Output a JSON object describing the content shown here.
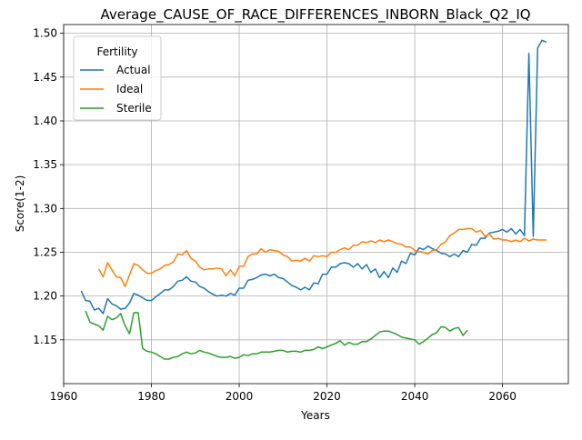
{
  "chart_data": {
    "type": "line",
    "title": "Average_CAUSE_OF_RACE_DIFFERENCES_INBORN_Black_Q2_IQ",
    "xlabel": "Years",
    "ylabel": "Score(1-2)",
    "xlim": [
      1960,
      2075
    ],
    "ylim": [
      1.1,
      1.51
    ],
    "x_ticks": [
      1960,
      1980,
      2000,
      2020,
      2040,
      2060
    ],
    "y_ticks": [
      1.15,
      1.2,
      1.25,
      1.3,
      1.35,
      1.4,
      1.45,
      1.5
    ],
    "grid": true,
    "legend": {
      "title": "Fertility",
      "position": "upper-left"
    },
    "series": [
      {
        "name": "Actual",
        "color": "#1f77b4",
        "points": [
          [
            1964,
            1.206
          ],
          [
            1965,
            1.195
          ],
          [
            1966,
            1.194
          ],
          [
            1967,
            1.184
          ],
          [
            1968,
            1.186
          ],
          [
            1969,
            1.18
          ],
          [
            1970,
            1.197
          ],
          [
            1971,
            1.191
          ],
          [
            1972,
            1.189
          ],
          [
            1973,
            1.185
          ],
          [
            1974,
            1.186
          ],
          [
            1975,
            1.192
          ],
          [
            1976,
            1.203
          ],
          [
            1977,
            1.201
          ],
          [
            1978,
            1.198
          ],
          [
            1979,
            1.195
          ],
          [
            1980,
            1.195
          ],
          [
            1981,
            1.199
          ],
          [
            1982,
            1.203
          ],
          [
            1983,
            1.207
          ],
          [
            1984,
            1.207
          ],
          [
            1985,
            1.211
          ],
          [
            1986,
            1.217
          ],
          [
            1987,
            1.218
          ],
          [
            1988,
            1.222
          ],
          [
            1989,
            1.217
          ],
          [
            1990,
            1.216
          ],
          [
            1991,
            1.211
          ],
          [
            1992,
            1.209
          ],
          [
            1993,
            1.205
          ],
          [
            1994,
            1.202
          ],
          [
            1995,
            1.2
          ],
          [
            1996,
            1.201
          ],
          [
            1997,
            1.2
          ],
          [
            1998,
            1.203
          ],
          [
            1999,
            1.201
          ],
          [
            2000,
            1.209
          ],
          [
            2001,
            1.209
          ],
          [
            2002,
            1.218
          ],
          [
            2003,
            1.219
          ],
          [
            2004,
            1.221
          ],
          [
            2005,
            1.224
          ],
          [
            2006,
            1.225
          ],
          [
            2007,
            1.223
          ],
          [
            2008,
            1.225
          ],
          [
            2009,
            1.221
          ],
          [
            2010,
            1.22
          ],
          [
            2011,
            1.216
          ],
          [
            2012,
            1.212
          ],
          [
            2013,
            1.21
          ],
          [
            2014,
            1.207
          ],
          [
            2015,
            1.21
          ],
          [
            2016,
            1.207
          ],
          [
            2017,
            1.215
          ],
          [
            2018,
            1.214
          ],
          [
            2019,
            1.225
          ],
          [
            2020,
            1.225
          ],
          [
            2021,
            1.233
          ],
          [
            2022,
            1.233
          ],
          [
            2023,
            1.237
          ],
          [
            2024,
            1.238
          ],
          [
            2025,
            1.237
          ],
          [
            2026,
            1.233
          ],
          [
            2027,
            1.237
          ],
          [
            2028,
            1.231
          ],
          [
            2029,
            1.236
          ],
          [
            2030,
            1.227
          ],
          [
            2031,
            1.231
          ],
          [
            2032,
            1.221
          ],
          [
            2033,
            1.228
          ],
          [
            2034,
            1.221
          ],
          [
            2035,
            1.232
          ],
          [
            2036,
            1.227
          ],
          [
            2037,
            1.24
          ],
          [
            2038,
            1.237
          ],
          [
            2039,
            1.249
          ],
          [
            2040,
            1.247
          ],
          [
            2041,
            1.255
          ],
          [
            2042,
            1.253
          ],
          [
            2043,
            1.257
          ],
          [
            2044,
            1.254
          ],
          [
            2045,
            1.252
          ],
          [
            2046,
            1.249
          ],
          [
            2047,
            1.248
          ],
          [
            2048,
            1.245
          ],
          [
            2049,
            1.248
          ],
          [
            2050,
            1.245
          ],
          [
            2051,
            1.252
          ],
          [
            2052,
            1.25
          ],
          [
            2053,
            1.259
          ],
          [
            2054,
            1.258
          ],
          [
            2055,
            1.266
          ],
          [
            2056,
            1.266
          ],
          [
            2057,
            1.272
          ],
          [
            2058,
            1.273
          ],
          [
            2059,
            1.274
          ],
          [
            2060,
            1.276
          ],
          [
            2061,
            1.273
          ],
          [
            2062,
            1.277
          ],
          [
            2063,
            1.271
          ],
          [
            2064,
            1.276
          ],
          [
            2065,
            1.269
          ],
          [
            2066,
            1.477
          ],
          [
            2067,
            1.268
          ],
          [
            2068,
            1.483
          ],
          [
            2069,
            1.492
          ],
          [
            2070,
            1.49
          ]
        ]
      },
      {
        "name": "Ideal",
        "color": "#ff7f0e",
        "points": [
          [
            1968,
            1.231
          ],
          [
            1969,
            1.222
          ],
          [
            1970,
            1.238
          ],
          [
            1971,
            1.23
          ],
          [
            1972,
            1.222
          ],
          [
            1973,
            1.221
          ],
          [
            1974,
            1.211
          ],
          [
            1975,
            1.224
          ],
          [
            1976,
            1.237
          ],
          [
            1977,
            1.235
          ],
          [
            1978,
            1.23
          ],
          [
            1979,
            1.226
          ],
          [
            1980,
            1.226
          ],
          [
            1981,
            1.229
          ],
          [
            1982,
            1.231
          ],
          [
            1983,
            1.235
          ],
          [
            1984,
            1.236
          ],
          [
            1985,
            1.239
          ],
          [
            1986,
            1.248
          ],
          [
            1987,
            1.247
          ],
          [
            1988,
            1.252
          ],
          [
            1989,
            1.243
          ],
          [
            1990,
            1.24
          ],
          [
            1991,
            1.233
          ],
          [
            1992,
            1.23
          ],
          [
            1993,
            1.231
          ],
          [
            1994,
            1.231
          ],
          [
            1995,
            1.232
          ],
          [
            1996,
            1.231
          ],
          [
            1997,
            1.223
          ],
          [
            1998,
            1.23
          ],
          [
            1999,
            1.223
          ],
          [
            2000,
            1.234
          ],
          [
            2001,
            1.234
          ],
          [
            2002,
            1.245
          ],
          [
            2003,
            1.248
          ],
          [
            2004,
            1.248
          ],
          [
            2005,
            1.254
          ],
          [
            2006,
            1.25
          ],
          [
            2007,
            1.253
          ],
          [
            2008,
            1.252
          ],
          [
            2009,
            1.251
          ],
          [
            2010,
            1.247
          ],
          [
            2011,
            1.245
          ],
          [
            2012,
            1.24
          ],
          [
            2013,
            1.241
          ],
          [
            2014,
            1.24
          ],
          [
            2015,
            1.243
          ],
          [
            2016,
            1.24
          ],
          [
            2017,
            1.246
          ],
          [
            2018,
            1.245
          ],
          [
            2019,
            1.246
          ],
          [
            2020,
            1.245
          ],
          [
            2021,
            1.25
          ],
          [
            2022,
            1.25
          ],
          [
            2023,
            1.253
          ],
          [
            2024,
            1.255
          ],
          [
            2025,
            1.253
          ],
          [
            2026,
            1.258
          ],
          [
            2027,
            1.258
          ],
          [
            2028,
            1.262
          ],
          [
            2029,
            1.261
          ],
          [
            2030,
            1.263
          ],
          [
            2031,
            1.261
          ],
          [
            2032,
            1.264
          ],
          [
            2033,
            1.262
          ],
          [
            2034,
            1.264
          ],
          [
            2035,
            1.262
          ],
          [
            2036,
            1.26
          ],
          [
            2037,
            1.259
          ],
          [
            2038,
            1.256
          ],
          [
            2039,
            1.256
          ],
          [
            2040,
            1.252
          ],
          [
            2041,
            1.251
          ],
          [
            2042,
            1.25
          ],
          [
            2043,
            1.248
          ],
          [
            2044,
            1.252
          ],
          [
            2045,
            1.253
          ],
          [
            2046,
            1.259
          ],
          [
            2047,
            1.262
          ],
          [
            2048,
            1.269
          ],
          [
            2049,
            1.272
          ],
          [
            2050,
            1.276
          ],
          [
            2051,
            1.276
          ],
          [
            2052,
            1.277
          ],
          [
            2053,
            1.277
          ],
          [
            2054,
            1.273
          ],
          [
            2055,
            1.275
          ],
          [
            2056,
            1.268
          ],
          [
            2057,
            1.271
          ],
          [
            2058,
            1.265
          ],
          [
            2059,
            1.266
          ],
          [
            2060,
            1.264
          ],
          [
            2061,
            1.264
          ],
          [
            2062,
            1.262
          ],
          [
            2063,
            1.264
          ],
          [
            2064,
            1.262
          ],
          [
            2065,
            1.266
          ],
          [
            2066,
            1.263
          ],
          [
            2067,
            1.265
          ],
          [
            2068,
            1.264
          ],
          [
            2069,
            1.264
          ],
          [
            2070,
            1.264
          ]
        ]
      },
      {
        "name": "Sterile",
        "color": "#2ca02c",
        "points": [
          [
            1965,
            1.183
          ],
          [
            1966,
            1.17
          ],
          [
            1967,
            1.168
          ],
          [
            1968,
            1.166
          ],
          [
            1969,
            1.161
          ],
          [
            1970,
            1.177
          ],
          [
            1971,
            1.173
          ],
          [
            1972,
            1.175
          ],
          [
            1973,
            1.18
          ],
          [
            1974,
            1.166
          ],
          [
            1975,
            1.157
          ],
          [
            1976,
            1.181
          ],
          [
            1977,
            1.181
          ],
          [
            1978,
            1.14
          ],
          [
            1979,
            1.137
          ],
          [
            1980,
            1.136
          ],
          [
            1981,
            1.134
          ],
          [
            1982,
            1.131
          ],
          [
            1983,
            1.128
          ],
          [
            1984,
            1.128
          ],
          [
            1985,
            1.13
          ],
          [
            1986,
            1.131
          ],
          [
            1987,
            1.134
          ],
          [
            1988,
            1.136
          ],
          [
            1989,
            1.134
          ],
          [
            1990,
            1.135
          ],
          [
            1991,
            1.138
          ],
          [
            1992,
            1.136
          ],
          [
            1993,
            1.135
          ],
          [
            1994,
            1.133
          ],
          [
            1995,
            1.131
          ],
          [
            1996,
            1.13
          ],
          [
            1997,
            1.13
          ],
          [
            1998,
            1.131
          ],
          [
            1999,
            1.129
          ],
          [
            2000,
            1.13
          ],
          [
            2001,
            1.133
          ],
          [
            2002,
            1.132
          ],
          [
            2003,
            1.134
          ],
          [
            2004,
            1.134
          ],
          [
            2005,
            1.136
          ],
          [
            2006,
            1.136
          ],
          [
            2007,
            1.136
          ],
          [
            2008,
            1.137
          ],
          [
            2009,
            1.138
          ],
          [
            2010,
            1.138
          ],
          [
            2011,
            1.136
          ],
          [
            2012,
            1.137
          ],
          [
            2013,
            1.137
          ],
          [
            2014,
            1.136
          ],
          [
            2015,
            1.138
          ],
          [
            2016,
            1.138
          ],
          [
            2017,
            1.139
          ],
          [
            2018,
            1.142
          ],
          [
            2019,
            1.14
          ],
          [
            2020,
            1.142
          ],
          [
            2021,
            1.144
          ],
          [
            2022,
            1.146
          ],
          [
            2023,
            1.149
          ],
          [
            2024,
            1.144
          ],
          [
            2025,
            1.147
          ],
          [
            2026,
            1.145
          ],
          [
            2027,
            1.145
          ],
          [
            2028,
            1.148
          ],
          [
            2029,
            1.148
          ],
          [
            2030,
            1.151
          ],
          [
            2031,
            1.155
          ],
          [
            2032,
            1.159
          ],
          [
            2033,
            1.16
          ],
          [
            2034,
            1.16
          ],
          [
            2035,
            1.158
          ],
          [
            2036,
            1.156
          ],
          [
            2037,
            1.153
          ],
          [
            2038,
            1.152
          ],
          [
            2039,
            1.151
          ],
          [
            2040,
            1.15
          ],
          [
            2041,
            1.145
          ],
          [
            2042,
            1.148
          ],
          [
            2043,
            1.152
          ],
          [
            2044,
            1.156
          ],
          [
            2045,
            1.158
          ],
          [
            2046,
            1.165
          ],
          [
            2047,
            1.164
          ],
          [
            2048,
            1.16
          ],
          [
            2049,
            1.163
          ],
          [
            2050,
            1.164
          ],
          [
            2051,
            1.155
          ],
          [
            2052,
            1.161
          ]
        ]
      }
    ]
  }
}
